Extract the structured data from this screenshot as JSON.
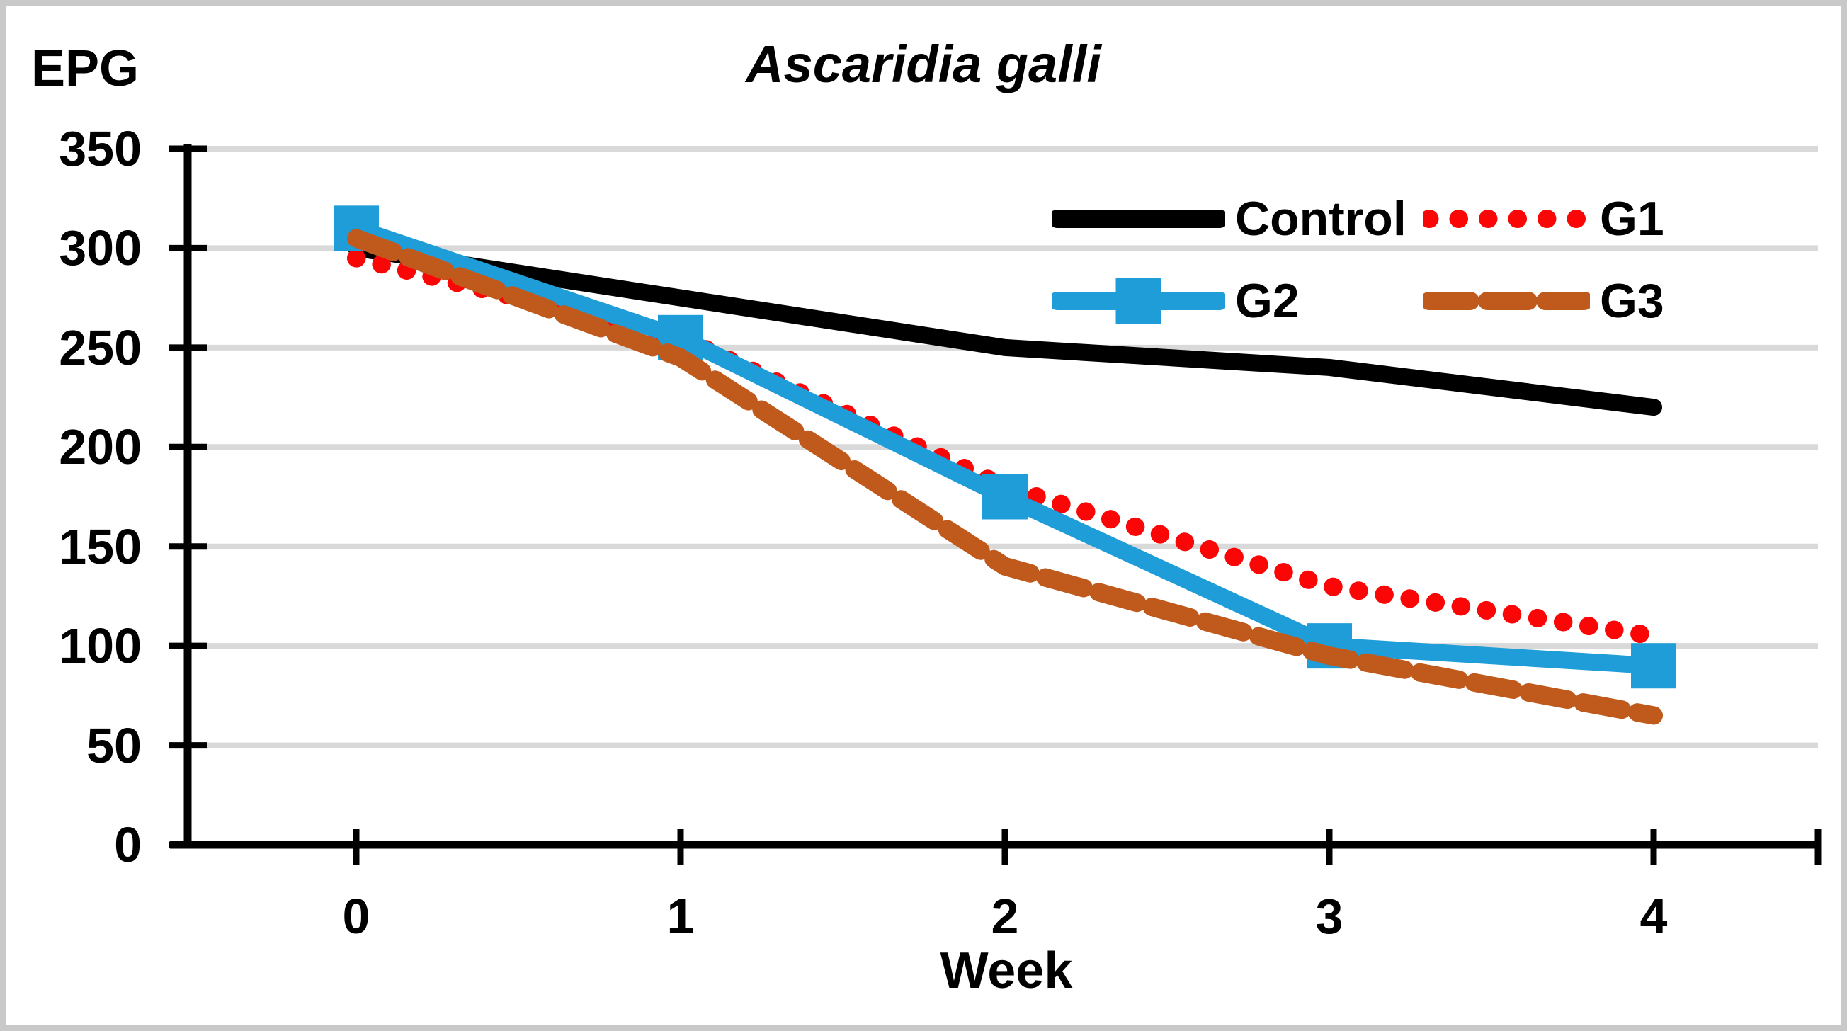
{
  "figure": {
    "background": "#FFFFFF",
    "border_color": "#C9C9C9"
  },
  "chart_data": {
    "type": "line",
    "title": "Ascaridia galli",
    "title_style": "bold-italic",
    "ylabel": "EPG",
    "xlabel": "Week",
    "x": [
      0,
      1,
      2,
      3,
      4
    ],
    "ylim": [
      0,
      350
    ],
    "y_ticks": [
      0,
      50,
      100,
      150,
      200,
      250,
      300,
      350
    ],
    "grid": "horizontal",
    "gridline_color": "#D9D9D9",
    "axis_color": "#000000",
    "legend_position": "inside-top-right",
    "series": [
      {
        "name": "Control",
        "color": "#000000",
        "style": "solid",
        "marker": "none",
        "values": [
          300,
          275,
          250,
          240,
          220
        ]
      },
      {
        "name": "G1",
        "color": "#FB0606",
        "style": "dotted",
        "marker": "none",
        "values": [
          295,
          255,
          180,
          130,
          105
        ]
      },
      {
        "name": "G2",
        "color": "#1F9DD8",
        "style": "solid",
        "marker": "square",
        "values": [
          310,
          255,
          175,
          100,
          90
        ]
      },
      {
        "name": "G3",
        "color": "#C05A1C",
        "style": "dashed",
        "marker": "none",
        "values": [
          305,
          245,
          140,
          95,
          65
        ]
      }
    ]
  }
}
